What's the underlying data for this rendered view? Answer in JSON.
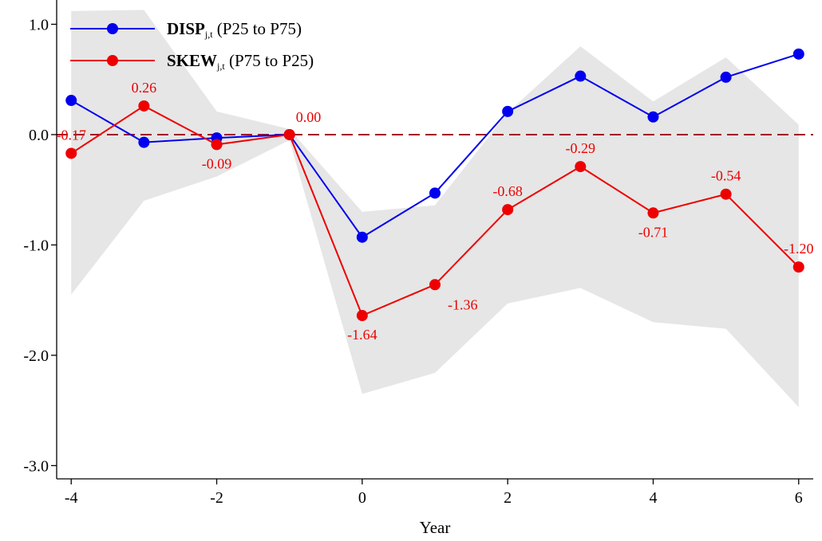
{
  "chart_data": {
    "type": "line",
    "xlabel": "Year",
    "ylabel": "",
    "xlim": [
      -4.2,
      6.2
    ],
    "ylim": [
      -3.12,
      1.22
    ],
    "x_ticks": [
      "-4",
      "-2",
      "0",
      "2",
      "4",
      "6"
    ],
    "x_tick_values": [
      -4,
      -2,
      0,
      2,
      4,
      6
    ],
    "y_ticks": [
      "1.0",
      "0.0",
      "-1.0",
      "-2.0",
      "-3.0"
    ],
    "y_tick_values": [
      1.0,
      0.0,
      -1.0,
      -2.0,
      -3.0
    ],
    "reference_line": {
      "y": 0,
      "color": "#a0102a",
      "style": "dashed"
    },
    "x": [
      -4,
      -3,
      -2,
      -1,
      0,
      1,
      2,
      3,
      4,
      5,
      6
    ],
    "confidence_band": {
      "color": "#e6e6e6",
      "upper": [
        1.12,
        1.13,
        0.21,
        0.05,
        -0.7,
        -0.64,
        0.2,
        0.8,
        0.3,
        0.7,
        0.09
      ],
      "lower": [
        -1.45,
        -0.6,
        -0.38,
        -0.05,
        -2.35,
        -2.16,
        -1.53,
        -1.39,
        -1.7,
        -1.76,
        -2.47
      ]
    },
    "series": [
      {
        "legend_main": "DISP",
        "legend_sub": "j,t",
        "legend_rest": " (P25 to P75)",
        "color": "#0000ee",
        "values": [
          0.31,
          -0.07,
          -0.03,
          0.0,
          -0.93,
          -0.53,
          0.21,
          0.53,
          0.16,
          0.52,
          0.73
        ]
      },
      {
        "legend_main": "SKEW",
        "legend_sub": "j,t",
        "legend_rest": " (P75 to P25)",
        "color": "#ee0000",
        "values": [
          -0.17,
          0.26,
          -0.09,
          0.0,
          -1.64,
          -1.36,
          -0.68,
          -0.29,
          -0.71,
          -0.54,
          -1.2
        ],
        "labels": [
          "-0.17",
          "0.26",
          "-0.09",
          "0.00",
          "-1.64",
          "-1.36",
          "-0.68",
          "-0.29",
          "-0.71",
          "-0.54",
          "-1.20"
        ],
        "label_positions": [
          "above",
          "above",
          "below",
          "above-right",
          "below",
          "below-right",
          "above",
          "above",
          "below",
          "above",
          "above"
        ]
      }
    ],
    "legend_position": "top-left",
    "grid": false
  }
}
